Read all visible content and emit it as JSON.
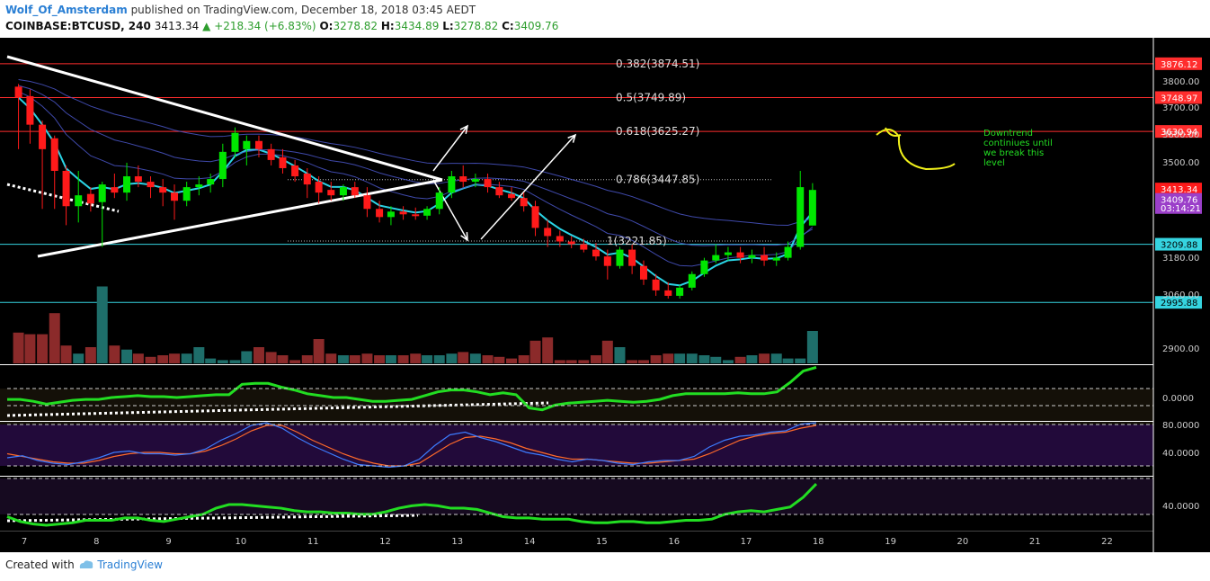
{
  "header": {
    "author": "Wolf_Of_Amsterdam",
    "published_text": "published on TradingView.com, December 18, 2018 03:45 AEDT",
    "symbol": "COINBASE:BTCUSD, 240",
    "last": "3413.34",
    "change": "+218.34 (+6.83%)",
    "o_label": "O:",
    "o_value": "3278.82",
    "h_label": "H:",
    "h_value": "3434.89",
    "l_label": "L:",
    "l_value": "3278.82",
    "c_label": "C:",
    "c_value": "3409.76"
  },
  "footer": {
    "created_with": "Created with",
    "brand": "TradingView"
  },
  "colors": {
    "bull": "#00e600",
    "bear": "#ff1a1a",
    "volume_bull": "#1e6e6a",
    "volume_bear": "#8b2a2a",
    "fib_line": "#ff2d2d",
    "support_line": "#35d4e0",
    "ema_fast": "#2ad4e6",
    "ema_slow": "#4a56c8",
    "osc_line": "#22dd22",
    "stoch_k": "#3d7cff",
    "stoch_d": "#ff6a2a",
    "annotation": "#f0f01a",
    "note_text": "#22dd22"
  },
  "chart_data": {
    "type": "candlestick",
    "title": "COINBASE:BTCUSD, 240",
    "x_ticks": [
      "7",
      "8",
      "9",
      "10",
      "11",
      "12",
      "13",
      "14",
      "15",
      "16",
      "17",
      "18",
      "19",
      "20",
      "21",
      "22"
    ],
    "y_ticks": [
      "3800.00",
      "3700.00",
      "3600.00",
      "3500.00",
      "3180.00",
      "3060.00",
      "2900.00"
    ],
    "ylim": [
      2850,
      3930
    ],
    "candles": [
      {
        "d": 6.92,
        "o": 3790,
        "h": 3800,
        "l": 3560,
        "c": 3750
      },
      {
        "d": 7.08,
        "o": 3755,
        "h": 3780,
        "l": 3580,
        "c": 3650
      },
      {
        "d": 7.25,
        "o": 3650,
        "h": 3665,
        "l": 3340,
        "c": 3560
      },
      {
        "d": 7.42,
        "o": 3600,
        "h": 3610,
        "l": 3340,
        "c": 3480
      },
      {
        "d": 7.58,
        "o": 3480,
        "h": 3500,
        "l": 3280,
        "c": 3350
      },
      {
        "d": 7.75,
        "o": 3350,
        "h": 3480,
        "l": 3290,
        "c": 3390
      },
      {
        "d": 7.92,
        "o": 3395,
        "h": 3420,
        "l": 3330,
        "c": 3360
      },
      {
        "d": 8.08,
        "o": 3365,
        "h": 3440,
        "l": 3200,
        "c": 3430
      },
      {
        "d": 8.25,
        "o": 3420,
        "h": 3470,
        "l": 3380,
        "c": 3400
      },
      {
        "d": 8.42,
        "o": 3400,
        "h": 3510,
        "l": 3370,
        "c": 3460
      },
      {
        "d": 8.58,
        "o": 3460,
        "h": 3500,
        "l": 3420,
        "c": 3440
      },
      {
        "d": 8.75,
        "o": 3440,
        "h": 3460,
        "l": 3380,
        "c": 3420
      },
      {
        "d": 8.92,
        "o": 3420,
        "h": 3450,
        "l": 3350,
        "c": 3400
      },
      {
        "d": 9.08,
        "o": 3400,
        "h": 3430,
        "l": 3300,
        "c": 3370
      },
      {
        "d": 9.25,
        "o": 3370,
        "h": 3440,
        "l": 3350,
        "c": 3420
      },
      {
        "d": 9.42,
        "o": 3420,
        "h": 3460,
        "l": 3390,
        "c": 3430
      },
      {
        "d": 9.58,
        "o": 3430,
        "h": 3470,
        "l": 3400,
        "c": 3450
      },
      {
        "d": 9.75,
        "o": 3450,
        "h": 3580,
        "l": 3420,
        "c": 3550
      },
      {
        "d": 9.92,
        "o": 3550,
        "h": 3640,
        "l": 3530,
        "c": 3620
      },
      {
        "d": 10.08,
        "o": 3560,
        "h": 3610,
        "l": 3500,
        "c": 3590
      },
      {
        "d": 10.25,
        "o": 3590,
        "h": 3610,
        "l": 3530,
        "c": 3560
      },
      {
        "d": 10.42,
        "o": 3560,
        "h": 3580,
        "l": 3500,
        "c": 3520
      },
      {
        "d": 10.58,
        "o": 3530,
        "h": 3560,
        "l": 3470,
        "c": 3490
      },
      {
        "d": 10.75,
        "o": 3500,
        "h": 3520,
        "l": 3440,
        "c": 3460
      },
      {
        "d": 10.92,
        "o": 3470,
        "h": 3490,
        "l": 3380,
        "c": 3430
      },
      {
        "d": 11.08,
        "o": 3440,
        "h": 3460,
        "l": 3360,
        "c": 3400
      },
      {
        "d": 11.25,
        "o": 3410,
        "h": 3440,
        "l": 3370,
        "c": 3390
      },
      {
        "d": 11.42,
        "o": 3390,
        "h": 3430,
        "l": 3370,
        "c": 3420
      },
      {
        "d": 11.58,
        "o": 3420,
        "h": 3440,
        "l": 3380,
        "c": 3390
      },
      {
        "d": 11.75,
        "o": 3390,
        "h": 3420,
        "l": 3310,
        "c": 3340
      },
      {
        "d": 11.92,
        "o": 3340,
        "h": 3370,
        "l": 3290,
        "c": 3310
      },
      {
        "d": 12.08,
        "o": 3310,
        "h": 3350,
        "l": 3280,
        "c": 3330
      },
      {
        "d": 12.25,
        "o": 3330,
        "h": 3350,
        "l": 3300,
        "c": 3320
      },
      {
        "d": 12.42,
        "o": 3320,
        "h": 3345,
        "l": 3300,
        "c": 3315
      },
      {
        "d": 12.58,
        "o": 3315,
        "h": 3350,
        "l": 3300,
        "c": 3340
      },
      {
        "d": 12.75,
        "o": 3340,
        "h": 3420,
        "l": 3320,
        "c": 3400
      },
      {
        "d": 12.92,
        "o": 3400,
        "h": 3480,
        "l": 3380,
        "c": 3460
      },
      {
        "d": 13.08,
        "o": 3460,
        "h": 3500,
        "l": 3420,
        "c": 3440
      },
      {
        "d": 13.25,
        "o": 3440,
        "h": 3470,
        "l": 3420,
        "c": 3450
      },
      {
        "d": 13.42,
        "o": 3450,
        "h": 3470,
        "l": 3400,
        "c": 3420
      },
      {
        "d": 13.58,
        "o": 3420,
        "h": 3440,
        "l": 3380,
        "c": 3390
      },
      {
        "d": 13.75,
        "o": 3395,
        "h": 3420,
        "l": 3370,
        "c": 3380
      },
      {
        "d": 13.92,
        "o": 3380,
        "h": 3400,
        "l": 3330,
        "c": 3350
      },
      {
        "d": 14.08,
        "o": 3350,
        "h": 3370,
        "l": 3240,
        "c": 3270
      },
      {
        "d": 14.25,
        "o": 3270,
        "h": 3300,
        "l": 3200,
        "c": 3240
      },
      {
        "d": 14.42,
        "o": 3240,
        "h": 3260,
        "l": 3200,
        "c": 3220
      },
      {
        "d": 14.58,
        "o": 3220,
        "h": 3240,
        "l": 3195,
        "c": 3210
      },
      {
        "d": 14.75,
        "o": 3210,
        "h": 3230,
        "l": 3180,
        "c": 3190
      },
      {
        "d": 14.92,
        "o": 3190,
        "h": 3215,
        "l": 3150,
        "c": 3165
      },
      {
        "d": 15.08,
        "o": 3165,
        "h": 3190,
        "l": 3080,
        "c": 3130
      },
      {
        "d": 15.25,
        "o": 3130,
        "h": 3200,
        "l": 3120,
        "c": 3190
      },
      {
        "d": 15.42,
        "o": 3190,
        "h": 3210,
        "l": 3100,
        "c": 3130
      },
      {
        "d": 15.58,
        "o": 3130,
        "h": 3150,
        "l": 3060,
        "c": 3080
      },
      {
        "d": 15.75,
        "o": 3080,
        "h": 3100,
        "l": 3020,
        "c": 3040
      },
      {
        "d": 15.92,
        "o": 3040,
        "h": 3070,
        "l": 3010,
        "c": 3020
      },
      {
        "d": 16.08,
        "o": 3020,
        "h": 3060,
        "l": 3010,
        "c": 3050
      },
      {
        "d": 16.25,
        "o": 3050,
        "h": 3110,
        "l": 3040,
        "c": 3100
      },
      {
        "d": 16.42,
        "o": 3100,
        "h": 3160,
        "l": 3090,
        "c": 3150
      },
      {
        "d": 16.58,
        "o": 3150,
        "h": 3210,
        "l": 3140,
        "c": 3170
      },
      {
        "d": 16.75,
        "o": 3170,
        "h": 3200,
        "l": 3150,
        "c": 3180
      },
      {
        "d": 16.92,
        "o": 3180,
        "h": 3200,
        "l": 3140,
        "c": 3160
      },
      {
        "d": 17.08,
        "o": 3160,
        "h": 3190,
        "l": 3140,
        "c": 3170
      },
      {
        "d": 17.25,
        "o": 3170,
        "h": 3200,
        "l": 3130,
        "c": 3150
      },
      {
        "d": 17.42,
        "o": 3150,
        "h": 3180,
        "l": 3130,
        "c": 3160
      },
      {
        "d": 17.58,
        "o": 3160,
        "h": 3220,
        "l": 3150,
        "c": 3200
      },
      {
        "d": 17.75,
        "o": 3200,
        "h": 3480,
        "l": 3190,
        "c": 3420
      },
      {
        "d": 17.92,
        "o": 3278.82,
        "h": 3434.89,
        "l": 3278.82,
        "c": 3409.76
      }
    ],
    "volume_scale_max": 1,
    "volume": [
      0.38,
      0.36,
      0.36,
      0.62,
      0.22,
      0.12,
      0.2,
      0.95,
      0.22,
      0.17,
      0.12,
      0.08,
      0.1,
      0.12,
      0.12,
      0.2,
      0.06,
      0.04,
      0.04,
      0.15,
      0.2,
      0.14,
      0.1,
      0.04,
      0.1,
      0.3,
      0.12,
      0.1,
      0.1,
      0.12,
      0.1,
      0.1,
      0.1,
      0.12,
      0.1,
      0.1,
      0.12,
      0.14,
      0.12,
      0.1,
      0.08,
      0.06,
      0.1,
      0.28,
      0.32,
      0.04,
      0.04,
      0.04,
      0.1,
      0.28,
      0.2,
      0.04,
      0.04,
      0.1,
      0.12,
      0.12,
      0.12,
      0.1,
      0.08,
      0.04,
      0.08,
      0.1,
      0.12,
      0.12,
      0.06,
      0.06,
      0.4
    ],
    "fib_levels": [
      {
        "ratio_label": "0.382(3874.51)",
        "price": 3874.51,
        "tag": "3876.12"
      },
      {
        "ratio_label": "0.5(3749.89)",
        "price": 3749.89,
        "tag": "3748.97"
      },
      {
        "ratio_label": "0.618(3625.27)",
        "price": 3625.27,
        "tag": "3630.94"
      },
      {
        "ratio_label": "0.786(3447.85)",
        "price": 3447.85,
        "tag": ""
      },
      {
        "ratio_label": "1(3221.85)",
        "price": 3221.85,
        "tag": ""
      }
    ],
    "support_levels": [
      {
        "price": 3209.88,
        "tag": "3209.88"
      },
      {
        "price": 2995.88,
        "tag": "2995.88"
      }
    ],
    "price_tags": [
      {
        "label": "3413.34",
        "price": 3413.34,
        "color": "#ff1a1a"
      },
      {
        "label": "3409.76",
        "price": 3375,
        "color": "#9b3fc9"
      },
      {
        "label": "03:14:21",
        "price": 3345,
        "color": "#9b3fc9"
      }
    ],
    "note": [
      "Downtrend",
      "continiues until",
      "we break this",
      "level"
    ],
    "indicator_ticks": {
      "osc": "0.0000",
      "stoch_top": "80.0000",
      "stoch_mid": "40.0000",
      "rsi": "40.0000"
    },
    "osc": [
      -0.2,
      -0.2,
      -0.4,
      -0.7,
      -0.5,
      -0.3,
      -0.2,
      -0.2,
      0,
      0.1,
      0.2,
      0.1,
      0.1,
      0,
      0.1,
      0.2,
      0.3,
      0.3,
      1.4,
      1.5,
      1.5,
      1.1,
      0.8,
      0.4,
      0.2,
      0,
      0,
      -0.2,
      -0.4,
      -0.4,
      -0.3,
      -0.2,
      0.2,
      0.6,
      0.8,
      0.8,
      0.6,
      0.3,
      0.5,
      0.3,
      -1.1,
      -1.3,
      -0.8,
      -0.6,
      -0.5,
      -0.4,
      -0.3,
      -0.4,
      -0.5,
      -0.4,
      -0.2,
      0.2,
      0.4,
      0.4,
      0.4,
      0.4,
      0.5,
      0.4,
      0.4,
      0.6,
      1.6,
      2.8,
      3.2
    ],
    "stoch_k": [
      32,
      35,
      28,
      24,
      22,
      26,
      32,
      40,
      42,
      38,
      38,
      36,
      38,
      45,
      58,
      68,
      80,
      84,
      76,
      62,
      50,
      40,
      30,
      22,
      20,
      18,
      20,
      30,
      50,
      66,
      70,
      62,
      56,
      48,
      40,
      36,
      30,
      26,
      30,
      28,
      24,
      22,
      26,
      28,
      28,
      34,
      48,
      58,
      64,
      66,
      70,
      72,
      82,
      84
    ],
    "stoch_d": [
      38,
      34,
      30,
      26,
      24,
      24,
      28,
      34,
      38,
      40,
      40,
      38,
      38,
      42,
      50,
      60,
      72,
      80,
      80,
      70,
      58,
      48,
      38,
      30,
      24,
      20,
      20,
      24,
      38,
      52,
      62,
      64,
      60,
      54,
      46,
      40,
      34,
      30,
      30,
      28,
      26,
      24,
      24,
      26,
      28,
      30,
      38,
      48,
      58,
      64,
      68,
      70,
      76,
      80
    ],
    "rsi": [
      40,
      36,
      34,
      33,
      34,
      35,
      37,
      37,
      37,
      39,
      39,
      37,
      36,
      38,
      40,
      42,
      47,
      50,
      50,
      49,
      48,
      47,
      45,
      44,
      44,
      43,
      43,
      42,
      42,
      44,
      47,
      49,
      50,
      49,
      47,
      47,
      46,
      43,
      40,
      39,
      39,
      38,
      38,
      38,
      36,
      35,
      35,
      36,
      36,
      35,
      35,
      36,
      37,
      37,
      38,
      42,
      44,
      45,
      44,
      46,
      48,
      56,
      67
    ]
  }
}
